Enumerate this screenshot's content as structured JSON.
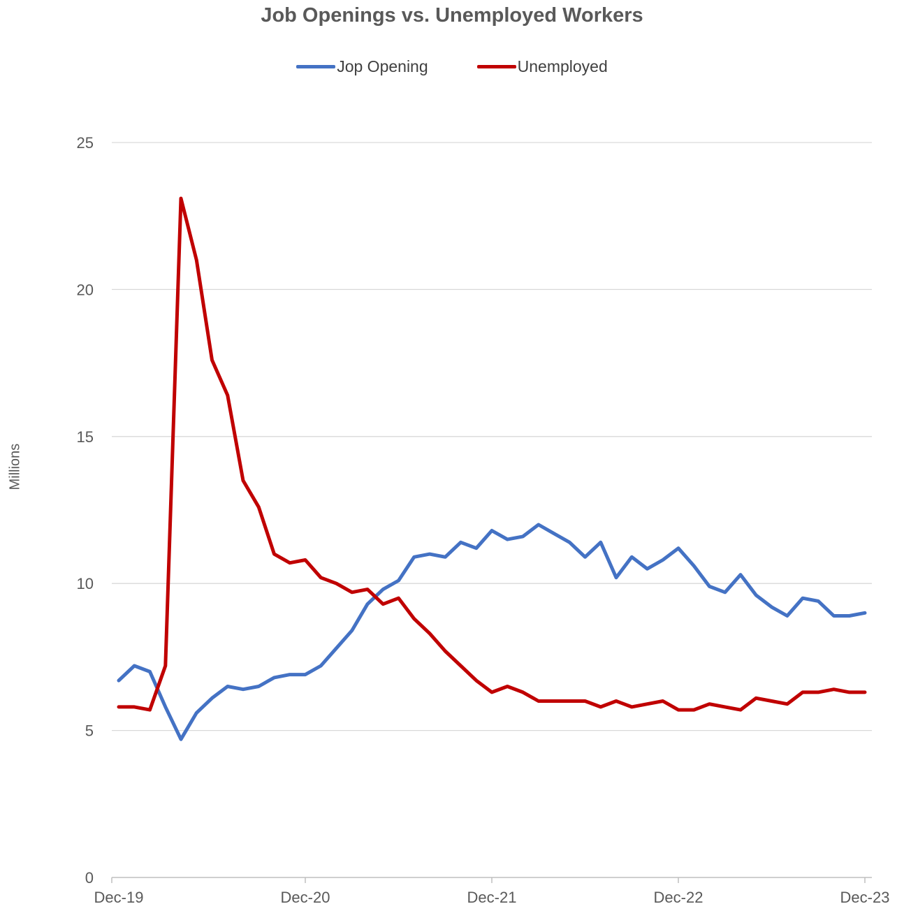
{
  "chart_data": {
    "type": "line",
    "title": "Job Openings vs. Unemployed Workers",
    "ylabel": "Millions",
    "xlabel": "",
    "ylim": [
      0,
      25
    ],
    "yticks": [
      0,
      5,
      10,
      15,
      20,
      25
    ],
    "xticks": [
      "Dec-19",
      "Dec-20",
      "Dec-21",
      "Dec-22",
      "Dec-23"
    ],
    "x": [
      "Dec-19",
      "Jan-20",
      "Feb-20",
      "Mar-20",
      "Apr-20",
      "May-20",
      "Jun-20",
      "Jul-20",
      "Aug-20",
      "Sep-20",
      "Oct-20",
      "Nov-20",
      "Dec-20",
      "Jan-21",
      "Feb-21",
      "Mar-21",
      "Apr-21",
      "May-21",
      "Jun-21",
      "Jul-21",
      "Aug-21",
      "Sep-21",
      "Oct-21",
      "Nov-21",
      "Dec-21",
      "Jan-22",
      "Feb-22",
      "Mar-22",
      "Apr-22",
      "May-22",
      "Jun-22",
      "Jul-22",
      "Aug-22",
      "Sep-22",
      "Oct-22",
      "Nov-22",
      "Dec-22",
      "Jan-23",
      "Feb-23",
      "Mar-23",
      "Apr-23",
      "May-23",
      "Jun-23",
      "Jul-23",
      "Aug-23",
      "Sep-23",
      "Oct-23",
      "Nov-23",
      "Dec-23"
    ],
    "grid": true,
    "legend": "top",
    "series": [
      {
        "name": "Jop Opening",
        "color": "#4472c4",
        "values": [
          6.7,
          7.2,
          7.0,
          5.8,
          4.7,
          5.6,
          6.1,
          6.5,
          6.4,
          6.5,
          6.8,
          6.9,
          6.9,
          7.2,
          7.8,
          8.4,
          9.3,
          9.8,
          10.1,
          10.9,
          11.0,
          10.9,
          11.4,
          11.2,
          11.8,
          11.5,
          11.6,
          12.0,
          11.7,
          11.4,
          10.9,
          11.4,
          10.2,
          10.9,
          10.5,
          10.8,
          11.2,
          10.6,
          9.9,
          9.7,
          10.3,
          9.6,
          9.2,
          8.9,
          9.5,
          9.4,
          8.9,
          8.9,
          9.0
        ]
      },
      {
        "name": "Unemployed",
        "color": "#c00000",
        "values": [
          5.8,
          5.8,
          5.7,
          7.2,
          23.1,
          21.0,
          17.6,
          16.4,
          13.5,
          12.6,
          11.0,
          10.7,
          10.8,
          10.2,
          10.0,
          9.7,
          9.8,
          9.3,
          9.5,
          8.8,
          8.3,
          7.7,
          7.2,
          6.7,
          6.3,
          6.5,
          6.3,
          6.0,
          6.0,
          6.0,
          6.0,
          5.8,
          6.0,
          5.8,
          5.9,
          6.0,
          5.7,
          5.7,
          5.9,
          5.8,
          5.7,
          6.1,
          6.0,
          5.9,
          6.3,
          6.3,
          6.4,
          6.3,
          6.3
        ]
      }
    ]
  }
}
